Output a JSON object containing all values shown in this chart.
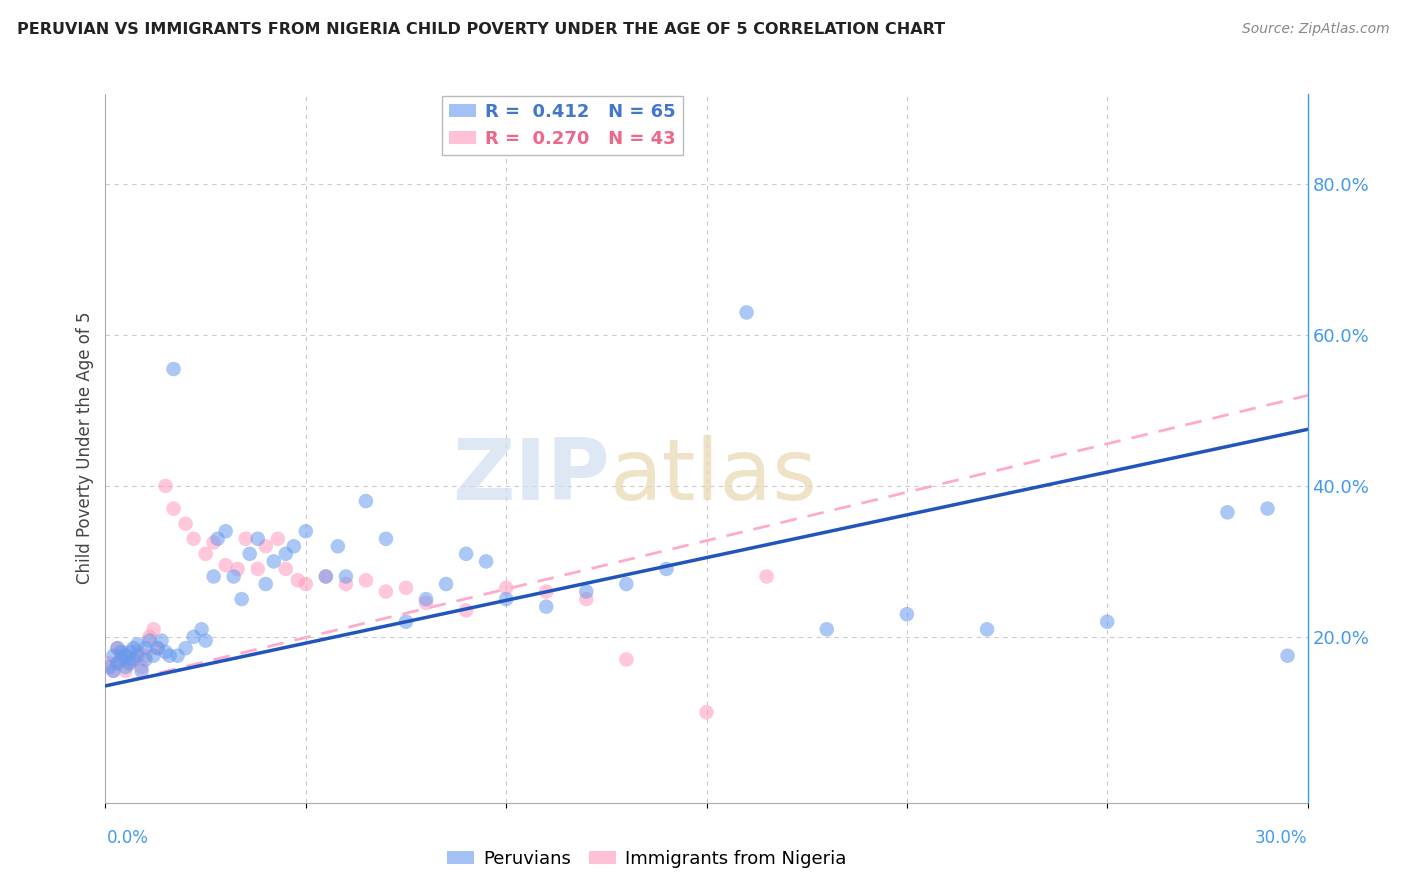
{
  "title": "PERUVIAN VS IMMIGRANTS FROM NIGERIA CHILD POVERTY UNDER THE AGE OF 5 CORRELATION CHART",
  "source": "Source: ZipAtlas.com",
  "ylabel": "Child Poverty Under the Age of 5",
  "peruvian_R": 0.412,
  "peruvian_N": 65,
  "nigeria_R": 0.27,
  "nigeria_N": 43,
  "xlim": [
    0.0,
    0.3
  ],
  "ylim": [
    -0.02,
    0.92
  ],
  "right_yticks": [
    0.2,
    0.4,
    0.6,
    0.8
  ],
  "right_yticklabels": [
    "20.0%",
    "40.0%",
    "60.0%",
    "80.0%"
  ],
  "watermark": "ZIPatlas",
  "background_color": "#ffffff",
  "dot_alpha": 0.55,
  "dot_size": 110,
  "peruvian_color": "#6699ee",
  "nigeria_color": "#ff99bb",
  "peruvian_line_color": "#2255bb",
  "nigeria_line_color": "#ffaacc",
  "blue_line_x0": 0.0,
  "blue_line_y0": 0.135,
  "blue_line_x1": 0.3,
  "blue_line_y1": 0.475,
  "pink_line_x0": 0.0,
  "pink_line_y0": 0.135,
  "pink_line_x1": 0.3,
  "pink_line_y1": 0.52,
  "peru_x": [
    0.001,
    0.002,
    0.002,
    0.003,
    0.003,
    0.004,
    0.004,
    0.005,
    0.005,
    0.006,
    0.006,
    0.007,
    0.007,
    0.008,
    0.008,
    0.009,
    0.01,
    0.01,
    0.011,
    0.012,
    0.013,
    0.014,
    0.015,
    0.016,
    0.017,
    0.018,
    0.02,
    0.022,
    0.024,
    0.025,
    0.027,
    0.028,
    0.03,
    0.032,
    0.034,
    0.036,
    0.038,
    0.04,
    0.042,
    0.045,
    0.047,
    0.05,
    0.055,
    0.058,
    0.06,
    0.065,
    0.07,
    0.075,
    0.08,
    0.085,
    0.09,
    0.095,
    0.1,
    0.11,
    0.12,
    0.13,
    0.14,
    0.16,
    0.18,
    0.2,
    0.22,
    0.25,
    0.28,
    0.29,
    0.295
  ],
  "peru_y": [
    0.16,
    0.155,
    0.175,
    0.165,
    0.185,
    0.17,
    0.18,
    0.16,
    0.175,
    0.165,
    0.18,
    0.17,
    0.185,
    0.175,
    0.19,
    0.155,
    0.17,
    0.185,
    0.195,
    0.175,
    0.185,
    0.195,
    0.18,
    0.175,
    0.555,
    0.175,
    0.185,
    0.2,
    0.21,
    0.195,
    0.28,
    0.33,
    0.34,
    0.28,
    0.25,
    0.31,
    0.33,
    0.27,
    0.3,
    0.31,
    0.32,
    0.34,
    0.28,
    0.32,
    0.28,
    0.38,
    0.33,
    0.22,
    0.25,
    0.27,
    0.31,
    0.3,
    0.25,
    0.24,
    0.26,
    0.27,
    0.29,
    0.63,
    0.21,
    0.23,
    0.21,
    0.22,
    0.365,
    0.37,
    0.175
  ],
  "nigeria_x": [
    0.001,
    0.002,
    0.003,
    0.003,
    0.004,
    0.005,
    0.005,
    0.006,
    0.007,
    0.008,
    0.009,
    0.01,
    0.011,
    0.012,
    0.013,
    0.015,
    0.017,
    0.02,
    0.022,
    0.025,
    0.027,
    0.03,
    0.033,
    0.035,
    0.038,
    0.04,
    0.043,
    0.045,
    0.048,
    0.05,
    0.055,
    0.06,
    0.065,
    0.07,
    0.075,
    0.08,
    0.09,
    0.1,
    0.11,
    0.12,
    0.13,
    0.15,
    0.165
  ],
  "nigeria_y": [
    0.165,
    0.155,
    0.165,
    0.185,
    0.175,
    0.155,
    0.175,
    0.165,
    0.17,
    0.18,
    0.16,
    0.175,
    0.2,
    0.21,
    0.185,
    0.4,
    0.37,
    0.35,
    0.33,
    0.31,
    0.325,
    0.295,
    0.29,
    0.33,
    0.29,
    0.32,
    0.33,
    0.29,
    0.275,
    0.27,
    0.28,
    0.27,
    0.275,
    0.26,
    0.265,
    0.245,
    0.235,
    0.265,
    0.26,
    0.25,
    0.17,
    0.1,
    0.28
  ]
}
